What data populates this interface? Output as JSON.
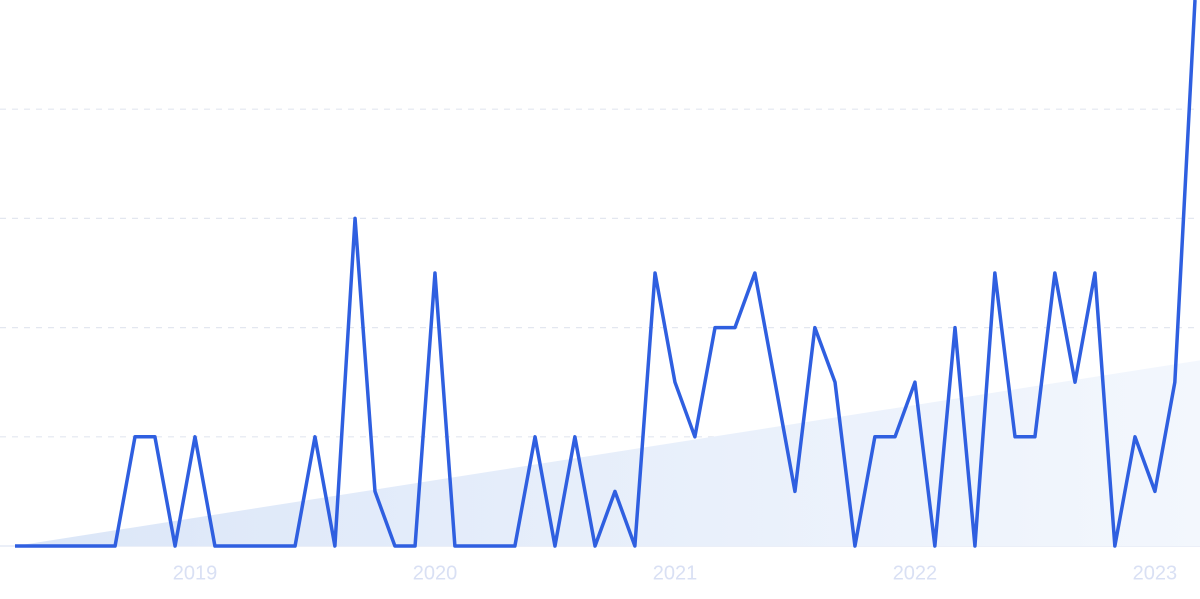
{
  "chart_data": {
    "type": "line",
    "x": [
      2018.25,
      2018.333,
      2018.417,
      2018.5,
      2018.583,
      2018.667,
      2018.75,
      2018.833,
      2018.917,
      2019,
      2019.083,
      2019.167,
      2019.25,
      2019.333,
      2019.417,
      2019.5,
      2019.583,
      2019.667,
      2019.75,
      2019.833,
      2019.917,
      2020,
      2020.083,
      2020.167,
      2020.25,
      2020.333,
      2020.417,
      2020.5,
      2020.583,
      2020.667,
      2020.75,
      2020.833,
      2020.917,
      2021,
      2021.083,
      2021.167,
      2021.25,
      2021.333,
      2021.417,
      2021.5,
      2021.583,
      2021.667,
      2021.75,
      2021.833,
      2021.917,
      2022,
      2022.083,
      2022.167,
      2022.25,
      2022.333,
      2022.417,
      2022.5,
      2022.583,
      2022.667,
      2022.75,
      2022.833,
      2022.917,
      2023,
      2023.083,
      2023.167
    ],
    "series": [
      {
        "color": "#2f5fe0",
        "values": [
          0,
          0,
          0,
          0,
          0,
          0,
          2,
          2,
          0,
          2,
          0,
          0,
          0,
          0,
          0,
          2,
          0,
          6,
          1,
          0,
          0,
          5,
          0,
          0,
          0,
          0,
          2,
          0,
          2,
          0,
          1,
          0,
          5,
          3,
          2,
          4,
          4,
          5,
          3,
          1,
          4,
          3,
          0,
          2,
          2,
          3,
          0,
          4,
          0,
          5,
          2,
          2,
          5,
          3,
          5,
          0,
          2,
          1,
          3,
          10
        ]
      }
    ],
    "trend": {
      "color": "#e3ecfb",
      "values": [
        0,
        3.4
      ]
    },
    "xlim": [
      2018.25,
      2023.167
    ],
    "xticks": [
      2019,
      2020,
      2021,
      2022,
      2023
    ],
    "ylim": [
      0,
      10
    ],
    "yticks": [
      0,
      2,
      4,
      6,
      8
    ],
    "grid": true
  }
}
